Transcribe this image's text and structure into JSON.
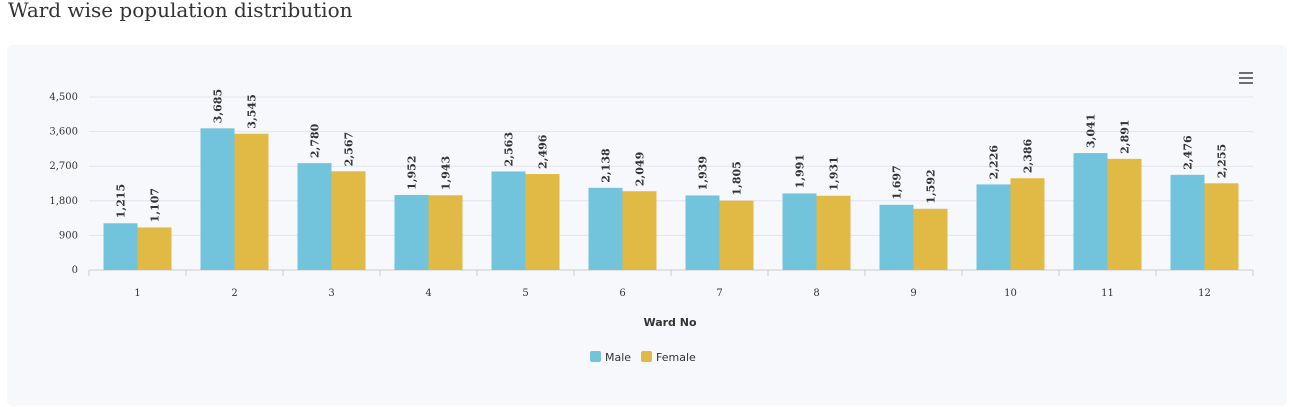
{
  "page": {
    "title": "Ward wise population distribution"
  },
  "menu": {
    "icon": "hamburger-menu-icon"
  },
  "colors": {
    "male": "#72c4dc",
    "female": "#e1b945",
    "grid": "#e3e3ee",
    "axis": "#cccccc",
    "card": "#f7f8fc"
  },
  "chart_data": {
    "type": "bar",
    "title": "",
    "xlabel": "Ward No",
    "ylabel": "",
    "categories": [
      "1",
      "2",
      "3",
      "4",
      "5",
      "6",
      "7",
      "8",
      "9",
      "10",
      "11",
      "12"
    ],
    "series": [
      {
        "name": "Male",
        "values": [
          1215,
          3685,
          2780,
          1952,
          2563,
          2138,
          1939,
          1991,
          1697,
          2226,
          3041,
          2476
        ]
      },
      {
        "name": "Female",
        "values": [
          1107,
          3545,
          2567,
          1943,
          2496,
          2049,
          1805,
          1931,
          1592,
          2386,
          2891,
          2255
        ]
      }
    ],
    "ylim": [
      0,
      4500
    ],
    "yticks": [
      0,
      900,
      1800,
      2700,
      3600,
      4500
    ],
    "grid": true,
    "legend": "bottom-center",
    "data_labels": true
  }
}
